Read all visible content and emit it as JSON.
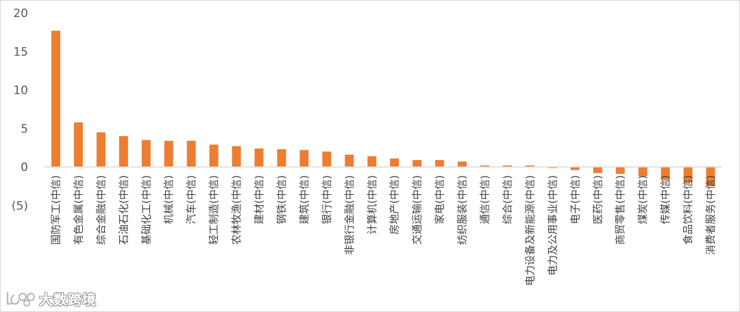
{
  "chart_data": {
    "type": "bar",
    "categories": [
      "国防军工(中信)",
      "有色金属(中信)",
      "综合金融(中信)",
      "石油石化(中信)",
      "基础化工(中信)",
      "机械(中信)",
      "汽车(中信)",
      "轻工制造(中信)",
      "农林牧渔(中信)",
      "建材(中信)",
      "钢铁(中信)",
      "建筑(中信)",
      "银行(中信)",
      "非银行金融(中信)",
      "计算机(中信)",
      "房地产(中信)",
      "交通运输(中信)",
      "家电(中信)",
      "纺织服装(中信)",
      "通信(中信)",
      "综合(中信)",
      "电力设备及新能源(中信)",
      "电力及公用事业(中信)",
      "电子(中信)",
      "医药(中信)",
      "商贸零售(中信)",
      "煤炭(中信)",
      "传媒(中信)",
      "食品饮料(中信)",
      "消费者服务(中信)"
    ],
    "values": [
      17.7,
      5.8,
      4.5,
      4.0,
      3.5,
      3.4,
      3.4,
      2.9,
      2.7,
      2.4,
      2.3,
      2.2,
      2.0,
      1.6,
      1.4,
      1.1,
      0.9,
      0.9,
      0.7,
      0.2,
      0.2,
      0.2,
      -0.1,
      -0.4,
      -0.8,
      -0.9,
      -1.2,
      -1.7,
      -2.0,
      -2.5
    ],
    "y_ticks": [
      "20",
      "15",
      "10",
      "5",
      "0",
      "(5)"
    ],
    "ylim": [
      -5,
      20
    ],
    "bar_color": "#ED7D31",
    "negative_tick_color": "#C00000",
    "grid": false
  },
  "watermark": {
    "text": "大数跨境"
  }
}
